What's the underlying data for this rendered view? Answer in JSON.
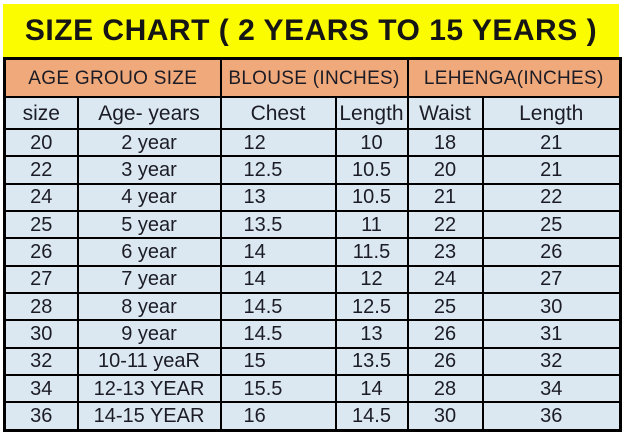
{
  "title": "SIZE CHART ( 2 YEARS TO 15 YEARS )",
  "colors": {
    "title_bg": "#fcfc00",
    "group_header_bg": "#f0a97a",
    "cell_bg": "#dbe8f1",
    "border": "#000000",
    "text": "#1c1c26"
  },
  "chart_data": {
    "type": "table",
    "title": "SIZE CHART ( 2 YEARS TO 15 YEARS )",
    "group_headers": [
      {
        "label": "AGE GROUO SIZE",
        "colspan": 2
      },
      {
        "label": "BLOUSE (INCHES)",
        "colspan": 2
      },
      {
        "label": "LEHENGA(INCHES)",
        "colspan": 2
      }
    ],
    "columns": [
      "size",
      "Age- years",
      "Chest",
      "Length",
      "Waist",
      "Length"
    ],
    "column_keys": [
      "size",
      "age-years",
      "chest",
      "blouse-length",
      "waist",
      "lehenga-length"
    ],
    "rows": [
      [
        "20",
        "2 year",
        "12",
        "10",
        "18",
        "21"
      ],
      [
        "22",
        "3 year",
        "12.5",
        "10.5",
        "20",
        "21"
      ],
      [
        "24",
        "4 year",
        "13",
        "10.5",
        "21",
        "22"
      ],
      [
        "25",
        "5 year",
        "13.5",
        "11",
        "22",
        "25"
      ],
      [
        "26",
        "6 year",
        "14",
        "11.5",
        "23",
        "26"
      ],
      [
        "27",
        "7 year",
        "14",
        "12",
        "24",
        "27"
      ],
      [
        "28",
        "8 year",
        "14.5",
        "12.5",
        "25",
        "30"
      ],
      [
        "30",
        "9 year",
        "14.5",
        "13",
        "26",
        "31"
      ],
      [
        "32",
        "10-11 yeaR",
        "15",
        "13.5",
        "26",
        "32"
      ],
      [
        "34",
        "12-13 YEAR",
        "15.5",
        "14",
        "28",
        "34"
      ],
      [
        "36",
        "14-15 YEAR",
        "16",
        "14.5",
        "30",
        "36"
      ]
    ]
  }
}
